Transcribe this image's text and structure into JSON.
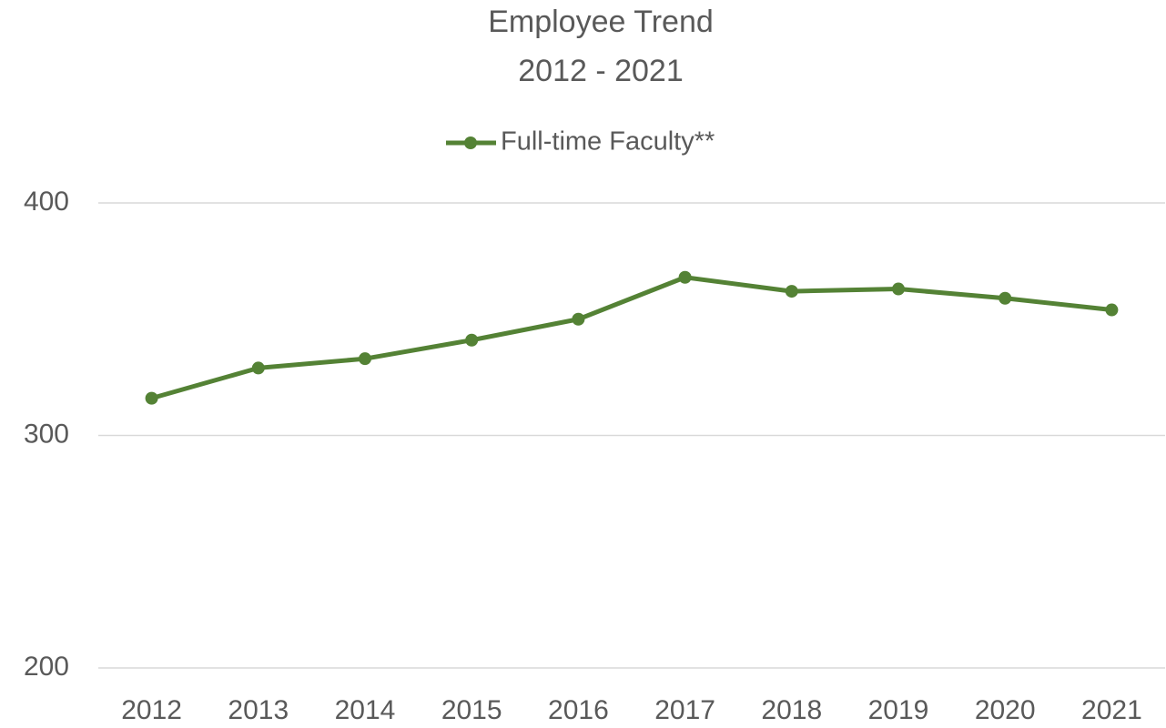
{
  "chart_data": {
    "type": "line",
    "title": "Employee Trend",
    "subtitle": "2012 - 2021",
    "categories": [
      "2012",
      "2013",
      "2014",
      "2015",
      "2016",
      "2017",
      "2018",
      "2019",
      "2020",
      "2021"
    ],
    "series": [
      {
        "name": "Full-time Faculty**",
        "color": "#548235",
        "values": [
          316,
          329,
          333,
          341,
          350,
          368,
          362,
          363,
          359,
          354
        ]
      }
    ],
    "ylim": [
      200,
      400
    ],
    "yticks": [
      200,
      300,
      400
    ],
    "grid": true,
    "legend": "top"
  }
}
